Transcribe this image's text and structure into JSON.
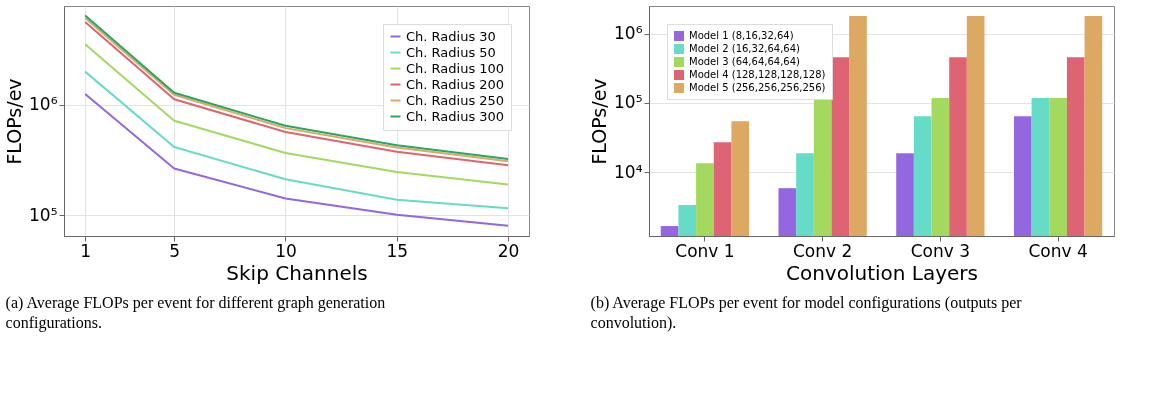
{
  "chart_data": [
    {
      "type": "line",
      "xlabel": "Skip Channels",
      "ylabel": "FLOPs/ev",
      "log": "y",
      "grid": true,
      "legend": "top right",
      "line_style": "solid",
      "x": [
        1,
        5,
        10,
        15,
        20
      ],
      "xlim": [
        0.05,
        20.94
      ],
      "xticks": [
        1,
        5,
        10,
        15,
        20
      ],
      "ylim": [
        65000,
        7800000
      ],
      "yticks": [
        {
          "value": 100000,
          "label": "10⁵"
        },
        {
          "value": 1000000,
          "label": "10⁶"
        }
      ],
      "series": [
        {
          "name": "Ch. Radius 30",
          "color": "#9467e0",
          "values": [
            1250000,
            265000,
            142000,
            101000,
            80500
          ]
        },
        {
          "name": "Ch. Radius 50",
          "color": "#66dbc8",
          "values": [
            1990000,
            414000,
            212000,
            138000,
            116000
          ]
        },
        {
          "name": "Ch. Radius 100",
          "color": "#a3d95f",
          "values": [
            3520000,
            717000,
            366000,
            246000,
            190000
          ]
        },
        {
          "name": "Ch. Radius 200",
          "color": "#de6474",
          "values": [
            5600000,
            1120000,
            566000,
            375000,
            284000
          ]
        },
        {
          "name": "Ch. Radius 250",
          "color": "#dda862",
          "values": [
            6070000,
            1230000,
            614000,
            411000,
            308000
          ]
        },
        {
          "name": "Ch. Radius 300",
          "color": "#24a862",
          "values": [
            6410000,
            1280000,
            645000,
            429000,
            323000
          ]
        }
      ],
      "annotations": [
        "(a) Average FLOPs per event for different graph generation configurations."
      ]
    },
    {
      "type": "bar",
      "xlabel": "Convolution Layers",
      "ylabel": "FLOPs/ev",
      "log": "y",
      "grid": "y",
      "legend": "top left",
      "categories": [
        "Conv 1",
        "Conv 2",
        "Conv 3",
        "Conv 4"
      ],
      "ylim": [
        1200,
        2500000
      ],
      "yticks": [
        {
          "value": 10000,
          "label": "10⁴"
        },
        {
          "value": 100000,
          "label": "10⁵"
        },
        {
          "value": 1000000,
          "label": "10⁶"
        }
      ],
      "series": [
        {
          "name": "Model 1 (8,16,32,64)",
          "color": "#9467e0",
          "values": [
            1670,
            5880,
            18700,
            64400
          ]
        },
        {
          "name": "Model 2 (16,32,64,64)",
          "color": "#66dbc8",
          "values": [
            3360,
            18700,
            64400,
            118000
          ]
        },
        {
          "name": "Model 3 (64,64,64,64)",
          "color": "#a3d95f",
          "values": [
            13500,
            118000,
            118000,
            118000
          ]
        },
        {
          "name": "Model 4 (128,128,128,128)",
          "color": "#de6474",
          "values": [
            27000,
            457000,
            457000,
            457000
          ]
        },
        {
          "name": "Model 5 (256,256,256,256)",
          "color": "#dda862",
          "values": [
            54200,
            1800000,
            1800000,
            1800000
          ]
        }
      ],
      "annotations": [
        "(b) Average FLOPs per event for model configurations (outputs per convolution)."
      ]
    }
  ]
}
